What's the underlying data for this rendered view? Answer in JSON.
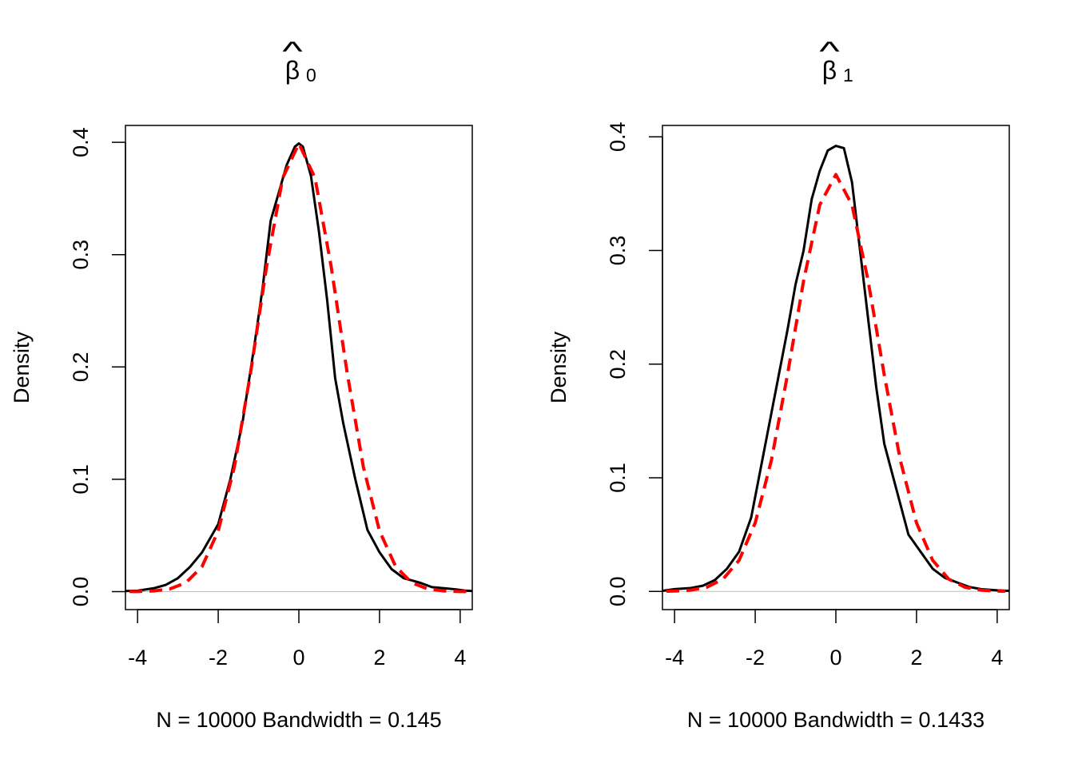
{
  "chart_data": [
    {
      "type": "line",
      "title": {
        "symbol": "β",
        "hat": "^",
        "subscript": "0"
      },
      "xlabel": "N = 10000   Bandwidth = 0.145",
      "ylabel": "Density",
      "xlim": [
        -4.3,
        4.3
      ],
      "ylim": [
        -0.016,
        0.415
      ],
      "xticks": [
        "-4",
        "-2",
        "0",
        "2",
        "4"
      ],
      "xtick_values": [
        -4,
        -2,
        0,
        2,
        4
      ],
      "yticks": [
        "0.0",
        "0.1",
        "0.2",
        "0.3",
        "0.4"
      ],
      "ytick_values": [
        0,
        0.1,
        0.2,
        0.3,
        0.4
      ],
      "zero_line_color": "#bebebe",
      "series": [
        {
          "style": "solid",
          "color": "#000000",
          "x": [
            -4.3,
            -4.0,
            -3.6,
            -3.3,
            -3.0,
            -2.7,
            -2.4,
            -2.0,
            -1.7,
            -1.4,
            -1.1,
            -0.9,
            -0.7,
            -0.5,
            -0.3,
            -0.1,
            0.0,
            0.1,
            0.3,
            0.5,
            0.7,
            0.9,
            1.1,
            1.4,
            1.7,
            2.0,
            2.3,
            2.6,
            2.8,
            3.0,
            3.3,
            3.6,
            3.9,
            4.1,
            4.3
          ],
          "y": [
            0.0005,
            0.0008,
            0.003,
            0.006,
            0.012,
            0.022,
            0.035,
            0.06,
            0.1,
            0.15,
            0.22,
            0.27,
            0.33,
            0.355,
            0.38,
            0.396,
            0.399,
            0.396,
            0.37,
            0.32,
            0.26,
            0.19,
            0.15,
            0.1,
            0.055,
            0.035,
            0.02,
            0.012,
            0.01,
            0.008,
            0.004,
            0.003,
            0.002,
            0.001,
            0.0005
          ]
        },
        {
          "style": "dashed",
          "color": "#ff0000",
          "x": [
            -4.2,
            -4.0,
            -3.6,
            -3.2,
            -2.8,
            -2.4,
            -2.0,
            -1.6,
            -1.2,
            -0.8,
            -0.4,
            0.0,
            0.4,
            0.8,
            1.2,
            1.6,
            2.0,
            2.4,
            2.8,
            3.2,
            3.6,
            4.0,
            4.2
          ],
          "y": [
            0.0001,
            0.0001,
            0.0006,
            0.0024,
            0.0079,
            0.0224,
            0.054,
            0.1109,
            0.1942,
            0.2897,
            0.3683,
            0.3989,
            0.3683,
            0.2897,
            0.1942,
            0.1109,
            0.054,
            0.0224,
            0.0079,
            0.0024,
            0.0006,
            0.0001,
            0.0001
          ]
        }
      ]
    },
    {
      "type": "line",
      "title": {
        "symbol": "β",
        "hat": "^",
        "subscript": "1"
      },
      "xlabel": "N = 10000   Bandwidth = 0.1433",
      "ylabel": "Density",
      "xlim": [
        -4.3,
        4.3
      ],
      "ylim": [
        -0.016,
        0.41
      ],
      "xticks": [
        "-4",
        "-2",
        "0",
        "2",
        "4"
      ],
      "xtick_values": [
        -4,
        -2,
        0,
        2,
        4
      ],
      "yticks": [
        "0.0",
        "0.1",
        "0.2",
        "0.3",
        "0.4"
      ],
      "ytick_values": [
        0,
        0.1,
        0.2,
        0.3,
        0.4
      ],
      "zero_line_color": "#bebebe",
      "series": [
        {
          "style": "solid",
          "color": "#000000",
          "x": [
            -4.3,
            -4.0,
            -3.6,
            -3.3,
            -3.0,
            -2.7,
            -2.4,
            -2.1,
            -1.8,
            -1.5,
            -1.2,
            -1.0,
            -0.8,
            -0.6,
            -0.4,
            -0.2,
            0.0,
            0.2,
            0.4,
            0.6,
            0.8,
            1.0,
            1.2,
            1.5,
            1.8,
            2.1,
            2.4,
            2.7,
            3.0,
            3.3,
            3.6,
            4.0,
            4.3
          ],
          "y": [
            0.0005,
            0.002,
            0.003,
            0.005,
            0.01,
            0.02,
            0.035,
            0.065,
            0.12,
            0.175,
            0.23,
            0.27,
            0.3,
            0.345,
            0.37,
            0.388,
            0.392,
            0.39,
            0.36,
            0.3,
            0.24,
            0.18,
            0.13,
            0.09,
            0.05,
            0.035,
            0.02,
            0.012,
            0.008,
            0.004,
            0.002,
            0.001,
            0.0005
          ]
        },
        {
          "style": "dashed",
          "color": "#ff0000",
          "x": [
            -4.2,
            -4.0,
            -3.6,
            -3.2,
            -2.8,
            -2.4,
            -2.0,
            -1.6,
            -1.2,
            -0.8,
            -0.4,
            0.0,
            0.4,
            0.8,
            1.2,
            1.6,
            2.0,
            2.4,
            2.8,
            3.2,
            3.6,
            4.0,
            4.2
          ],
          "y": [
            0.0002,
            0.0003,
            0.0011,
            0.0037,
            0.0108,
            0.0274,
            0.0603,
            0.1152,
            0.1906,
            0.2733,
            0.34,
            0.3668,
            0.34,
            0.2733,
            0.1906,
            0.1152,
            0.0603,
            0.0274,
            0.0108,
            0.0037,
            0.0011,
            0.0003,
            0.0002
          ]
        }
      ]
    }
  ]
}
